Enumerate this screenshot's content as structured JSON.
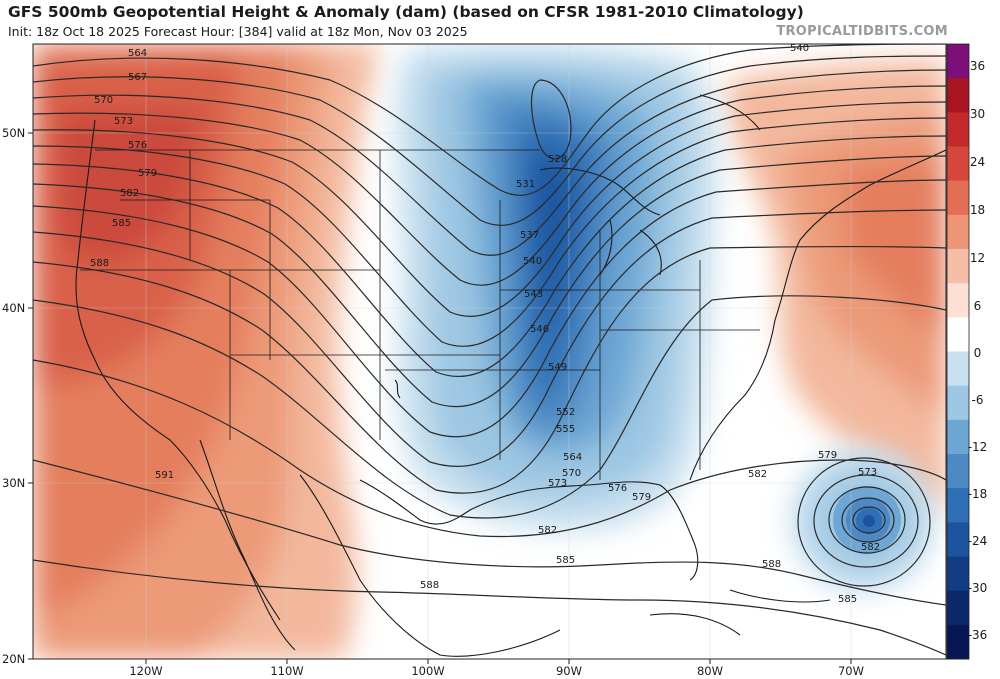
{
  "header": {
    "title": "GFS 500mb Geopotential Height & Anomaly (dam) (based on CFSR 1981-2010 Climatology)",
    "subtitle": "Init: 18z Oct 18 2025   Forecast Hour: [384]   valid at 18z Mon, Nov 03 2025",
    "brand": "TROPICALTIDBITS.COM"
  },
  "map": {
    "lat_labels": [
      "50N",
      "40N",
      "30N",
      "20N"
    ],
    "lon_labels": [
      "120W",
      "110W",
      "100W",
      "90W",
      "80W",
      "70W"
    ],
    "contour_labels": [
      "564",
      "567",
      "570",
      "573",
      "576",
      "579",
      "582",
      "585",
      "588",
      "591",
      "528",
      "531",
      "537",
      "540",
      "543",
      "546",
      "549",
      "552",
      "555",
      "564",
      "570",
      "573",
      "576",
      "579",
      "582",
      "585",
      "588",
      "540",
      "582",
      "579",
      "573",
      "582",
      "585",
      "588"
    ]
  },
  "colorbar": {
    "labels": [
      "36",
      "30",
      "24",
      "18",
      "12",
      "6",
      "0",
      "-6",
      "-12",
      "-18",
      "-24",
      "-30",
      "-36"
    ],
    "colors": [
      "#7d0f7a",
      "#a8141f",
      "#c12a2c",
      "#d4473a",
      "#e46e53",
      "#ef9577",
      "#f6bea6",
      "#fbe0d3",
      "#ffffff",
      "#c9e0ef",
      "#9dc7e3",
      "#6ea7d4",
      "#4d8ac4",
      "#2f6fb5",
      "#1c54a0",
      "#123c83",
      "#0b2868",
      "#071654"
    ],
    "positive_color": "#e07a5f",
    "negative_color": "#4f8fc6"
  }
}
